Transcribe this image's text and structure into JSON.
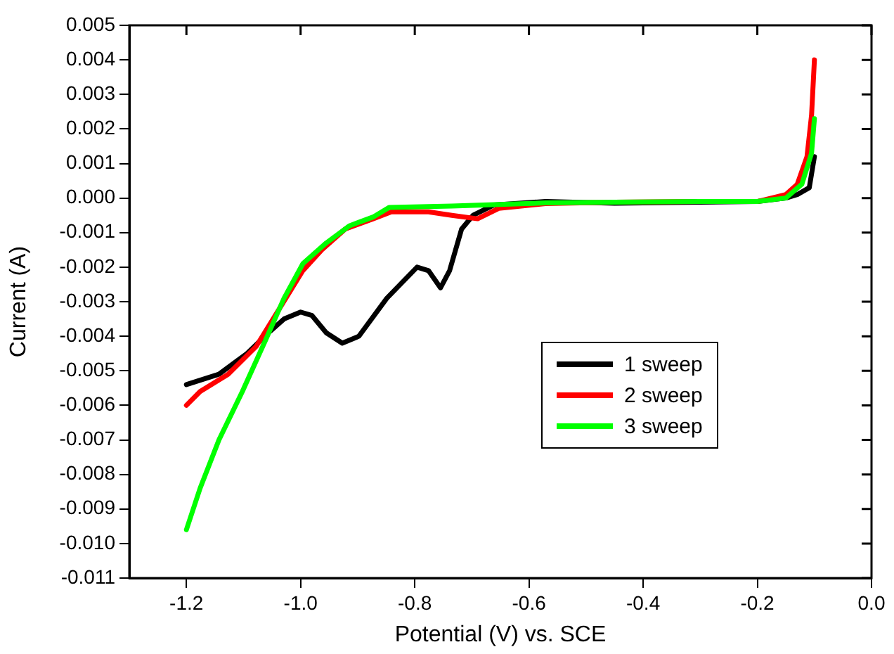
{
  "chart_data": {
    "type": "line",
    "xlabel": "Potential (V) vs. SCE",
    "ylabel": "Current (A)",
    "xlim": [
      -1.3,
      0.0
    ],
    "xticks": [
      {
        "value": -1.2,
        "label": "-1.2"
      },
      {
        "value": -1.0,
        "label": "-1.0"
      },
      {
        "value": -0.8,
        "label": "-0.8"
      },
      {
        "value": -0.6,
        "label": "-0.6"
      },
      {
        "value": -0.4,
        "label": "-0.4"
      },
      {
        "value": -0.2,
        "label": "-0.2"
      },
      {
        "value": 0.0,
        "label": "0.0"
      }
    ],
    "ylim": [
      -0.011,
      0.005
    ],
    "yticks": [
      {
        "value": -0.011,
        "label": "-0.011"
      },
      {
        "value": -0.01,
        "label": "-0.010"
      },
      {
        "value": -0.009,
        "label": "-0.009"
      },
      {
        "value": -0.008,
        "label": "-0.008"
      },
      {
        "value": -0.007,
        "label": "-0.007"
      },
      {
        "value": -0.006,
        "label": "-0.006"
      },
      {
        "value": -0.005,
        "label": "-0.005"
      },
      {
        "value": -0.004,
        "label": "-0.004"
      },
      {
        "value": -0.003,
        "label": "-0.003"
      },
      {
        "value": -0.002,
        "label": "-0.002"
      },
      {
        "value": -0.001,
        "label": "-0.001"
      },
      {
        "value": 0.0,
        "label": "0.000"
      },
      {
        "value": 0.001,
        "label": "0.001"
      },
      {
        "value": 0.002,
        "label": "0.002"
      },
      {
        "value": 0.003,
        "label": "0.003"
      },
      {
        "value": 0.004,
        "label": "0.004"
      },
      {
        "value": 0.005,
        "label": "0.005"
      }
    ],
    "grid": false,
    "legend": "bottom right",
    "marker": "none",
    "line_style": "solid",
    "series": [
      {
        "name": "1 sweep",
        "color": "#000000",
        "x": [
          -1.2,
          -1.143,
          -1.094,
          -1.053,
          -1.029,
          -1.0,
          -0.98,
          -0.955,
          -0.927,
          -0.898,
          -0.849,
          -0.796,
          -0.776,
          -0.755,
          -0.739,
          -0.718,
          -0.698,
          -0.661,
          -0.571,
          -0.45,
          -0.3,
          -0.2,
          -0.15,
          -0.13,
          -0.109,
          -0.1
        ],
        "values": [
          -0.0054,
          -0.0051,
          -0.0045,
          -0.00385,
          -0.0035,
          -0.0033,
          -0.0034,
          -0.0039,
          -0.0042,
          -0.004,
          -0.0029,
          -0.002,
          -0.0021,
          -0.0026,
          -0.0021,
          -0.0009,
          -0.0005,
          -0.0002,
          -0.0001,
          -0.00015,
          -0.00012,
          -0.0001,
          0.0,
          0.0001,
          0.0003,
          0.0012
        ]
      },
      {
        "name": "2 sweep",
        "color": "#ff0000",
        "x": [
          -1.2,
          -1.176,
          -1.127,
          -1.078,
          -1.037,
          -0.996,
          -0.963,
          -0.922,
          -0.873,
          -0.841,
          -0.776,
          -0.735,
          -0.69,
          -0.653,
          -0.571,
          -0.45,
          -0.3,
          -0.2,
          -0.15,
          -0.13,
          -0.113,
          -0.105,
          -0.1
        ],
        "values": [
          -0.006,
          -0.0056,
          -0.0051,
          -0.0043,
          -0.0032,
          -0.0021,
          -0.0015,
          -0.0009,
          -0.0006,
          -0.0004,
          -0.0004,
          -0.0005,
          -0.0006,
          -0.0003,
          -0.00016,
          -0.00012,
          -0.0001,
          -0.0001,
          0.0001,
          0.0004,
          0.0012,
          0.0024,
          0.004
        ]
      },
      {
        "name": "3 sweep",
        "color": "#00ff00",
        "x": [
          -1.2,
          -1.176,
          -1.143,
          -1.102,
          -1.061,
          -1.029,
          -0.996,
          -0.955,
          -0.914,
          -0.873,
          -0.845,
          -0.735,
          -0.571,
          -0.45,
          -0.3,
          -0.2,
          -0.15,
          -0.122,
          -0.105,
          -0.1
        ],
        "values": [
          -0.0096,
          -0.0084,
          -0.007,
          -0.0056,
          -0.0041,
          -0.0029,
          -0.0019,
          -0.0013,
          -0.0008,
          -0.00055,
          -0.00027,
          -0.00023,
          -0.00014,
          -0.00012,
          -0.0001,
          -0.0001,
          0.0,
          0.0004,
          0.0013,
          0.0023
        ]
      }
    ]
  }
}
